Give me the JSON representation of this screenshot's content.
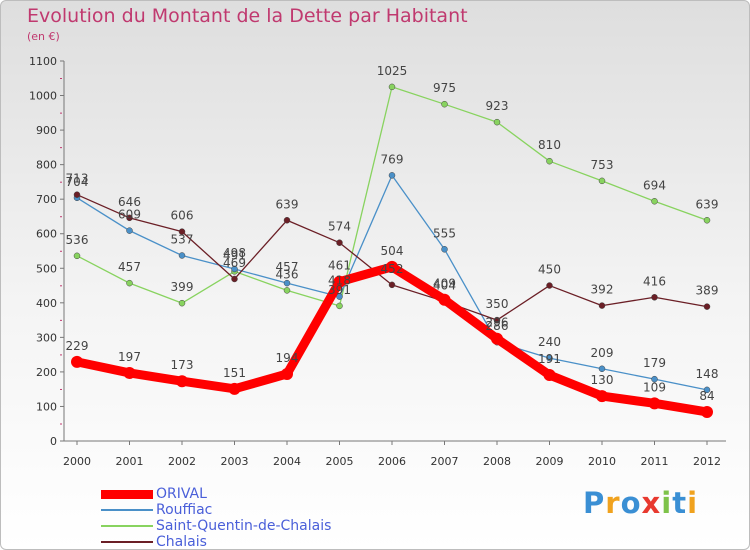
{
  "title": "Evolution du Montant de la Dette par Habitant",
  "subtitle": "(en €)",
  "logo_text": "Proxiti",
  "chart_data": {
    "type": "line",
    "title": "Evolution du Montant de la Dette par Habitant",
    "ylabel": "(en €)",
    "x": [
      2000,
      2001,
      2002,
      2003,
      2004,
      2005,
      2006,
      2007,
      2008,
      2009,
      2010,
      2011,
      2012
    ],
    "ylim": [
      0,
      1100
    ],
    "yticks": [
      0,
      100,
      200,
      300,
      400,
      500,
      600,
      700,
      800,
      900,
      1000,
      1100
    ],
    "grid": false,
    "legend_position": "bottom-left",
    "series": [
      {
        "name": "ORIVAL",
        "color": "#ff0000",
        "values": [
          229,
          197,
          173,
          151,
          194,
          461,
          504,
          409,
          296,
          191,
          130,
          109,
          84
        ]
      },
      {
        "name": "Rouffiac",
        "color": "#4a90c8",
        "values": [
          704,
          609,
          537,
          498,
          457,
          418,
          769,
          555,
          286,
          240,
          209,
          179,
          148
        ]
      },
      {
        "name": "Saint-Quentin-de-Chalais",
        "color": "#88d35f",
        "values": [
          536,
          457,
          399,
          491,
          436,
          391,
          1025,
          975,
          923,
          810,
          753,
          694,
          639
        ]
      },
      {
        "name": "Chalais",
        "color": "#6b1f26",
        "values": [
          713,
          646,
          606,
          469,
          639,
          574,
          452,
          404,
          350,
          450,
          392,
          416,
          389
        ]
      }
    ]
  }
}
